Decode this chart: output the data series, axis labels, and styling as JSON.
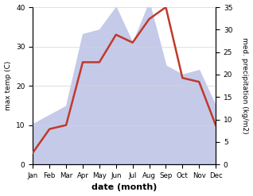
{
  "months": [
    "Jan",
    "Feb",
    "Mar",
    "Apr",
    "May",
    "Jun",
    "Jul",
    "Aug",
    "Sep",
    "Oct",
    "Nov",
    "Dec"
  ],
  "temperature": [
    3,
    9,
    10,
    26,
    26,
    33,
    31,
    37,
    40,
    22,
    21,
    10
  ],
  "precipitation": [
    9,
    11,
    13,
    29,
    30,
    35,
    27,
    36,
    22,
    20,
    21,
    13
  ],
  "temp_color": "#c0392b",
  "precip_color_fill": "#c5cae9",
  "temp_ylim": [
    0,
    40
  ],
  "precip_ylim": [
    0,
    35
  ],
  "temp_yticks": [
    0,
    10,
    20,
    30,
    40
  ],
  "precip_yticks": [
    0,
    5,
    10,
    15,
    20,
    25,
    30,
    35
  ],
  "xlabel": "date (month)",
  "ylabel_left": "max temp (C)",
  "ylabel_right": "med. precipitation (kg/m2)"
}
